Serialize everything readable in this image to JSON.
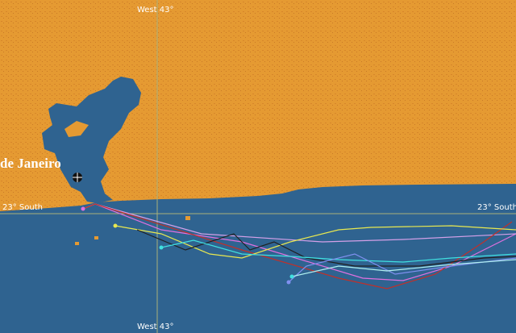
{
  "labels": {
    "meridian_top": "West 43°",
    "meridian_bottom": "West 43°",
    "parallel_left": "23° South",
    "parallel_right": "23° South",
    "city": "de Janeiro"
  }
}
